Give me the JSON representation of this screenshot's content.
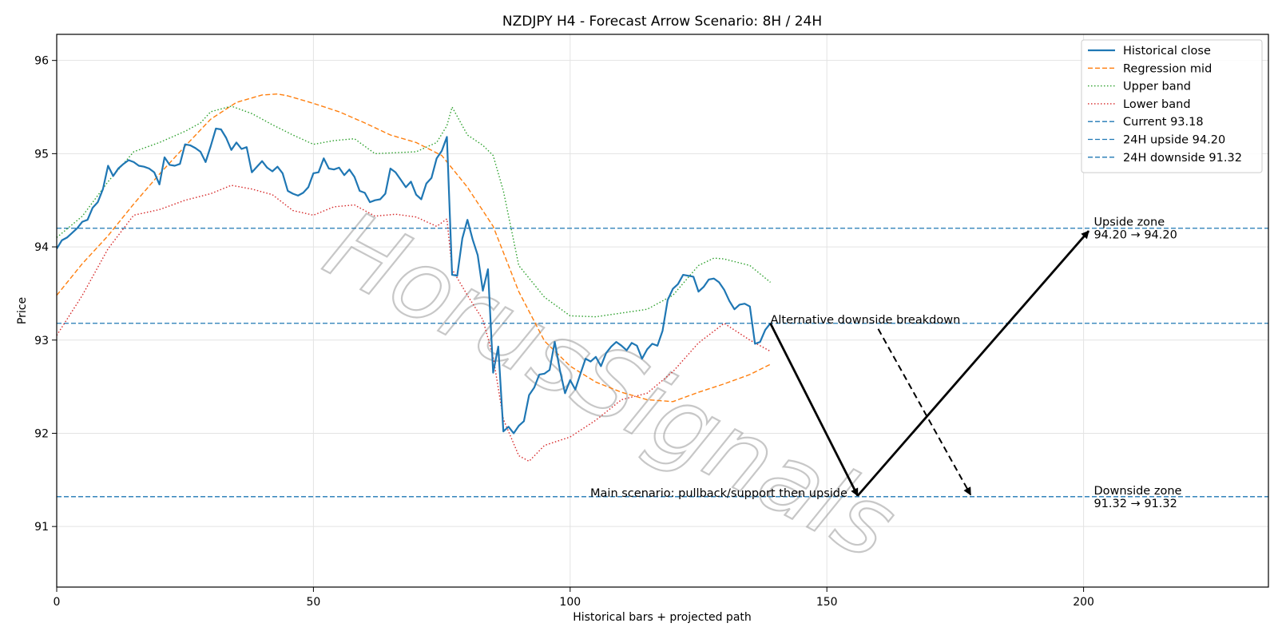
{
  "chart_data": {
    "type": "line",
    "title": "NZDJPY H4 - Forecast Arrow Scenario: 8H / 24H",
    "xlabel": "Historical bars + projected path",
    "ylabel": "Price",
    "xlim": [
      0,
      236
    ],
    "ylim": [
      90.35,
      96.28
    ],
    "xticks": [
      0,
      50,
      100,
      150,
      200
    ],
    "yticks": [
      91,
      92,
      93,
      94,
      95,
      96
    ],
    "grid": true,
    "legend_position": "top-right",
    "watermark": "HorusSignals",
    "colors": {
      "close": "#1f77b4",
      "mid": "#ff7f0e",
      "upper": "#2ca02c",
      "lower": "#d62728",
      "hline": "#1f77b4",
      "arrow": "#000000"
    },
    "series": [
      {
        "name": "Historical close",
        "style": "solid",
        "color": "#1f77b4",
        "x": [
          0,
          1,
          2,
          3,
          4,
          5,
          6,
          7,
          8,
          9,
          10,
          11,
          12,
          13,
          14,
          15,
          16,
          17,
          18,
          19,
          20,
          21,
          22,
          23,
          24,
          25,
          26,
          27,
          28,
          29,
          30,
          31,
          32,
          33,
          34,
          35,
          36,
          37,
          38,
          39,
          40,
          41,
          42,
          43,
          44,
          45,
          46,
          47,
          48,
          49,
          50,
          51,
          52,
          53,
          54,
          55,
          56,
          57,
          58,
          59,
          60,
          61,
          62,
          63,
          64,
          65,
          66,
          67,
          68,
          69,
          70,
          71,
          72,
          73,
          74,
          75,
          76,
          77,
          78,
          79,
          80,
          81,
          82,
          83,
          84,
          85,
          86,
          87,
          88,
          89,
          90,
          91,
          92,
          93,
          94,
          95,
          96,
          97,
          98,
          99,
          100,
          101,
          102,
          103,
          104,
          105,
          106,
          107,
          108,
          109,
          110,
          111,
          112,
          113,
          114,
          115,
          116,
          117,
          118,
          119,
          120,
          121,
          122,
          123,
          124,
          125,
          126,
          127,
          128,
          129,
          130,
          131,
          132,
          133,
          134,
          135,
          136,
          137,
          138,
          139
        ],
        "values": [
          93.98,
          94.07,
          94.1,
          94.15,
          94.2,
          94.27,
          94.29,
          94.42,
          94.48,
          94.62,
          94.87,
          94.76,
          94.84,
          94.89,
          94.93,
          94.91,
          94.87,
          94.86,
          94.84,
          94.8,
          94.67,
          94.96,
          94.88,
          94.87,
          94.89,
          95.1,
          95.09,
          95.06,
          95.02,
          94.91,
          95.08,
          95.27,
          95.26,
          95.17,
          95.04,
          95.12,
          95.05,
          95.07,
          94.8,
          94.86,
          94.92,
          94.85,
          94.81,
          94.86,
          94.79,
          94.6,
          94.57,
          94.55,
          94.58,
          94.64,
          94.79,
          94.8,
          94.95,
          94.84,
          94.83,
          94.85,
          94.77,
          94.83,
          94.75,
          94.6,
          94.58,
          94.48,
          94.5,
          94.51,
          94.57,
          94.84,
          94.8,
          94.72,
          94.64,
          94.7,
          94.56,
          94.51,
          94.68,
          94.74,
          94.95,
          95.03,
          95.18,
          93.7,
          93.69,
          94.09,
          94.29,
          94.08,
          93.91,
          93.53,
          93.76,
          92.65,
          92.93,
          92.02,
          92.07,
          92.0,
          92.08,
          92.13,
          92.41,
          92.49,
          92.63,
          92.64,
          92.68,
          92.98,
          92.68,
          92.43,
          92.57,
          92.47,
          92.64,
          92.8,
          92.77,
          92.82,
          92.72,
          92.86,
          92.93,
          92.98,
          92.94,
          92.89,
          92.97,
          92.94,
          92.8,
          92.9,
          92.96,
          92.94,
          93.1,
          93.43,
          93.55,
          93.6,
          93.7,
          93.69,
          93.68,
          93.52,
          93.57,
          93.65,
          93.66,
          93.62,
          93.54,
          93.42,
          93.33,
          93.38,
          93.39,
          93.36,
          92.96,
          92.98,
          93.11,
          93.18
        ]
      },
      {
        "name": "Regression mid",
        "style": "dashed",
        "color": "#ff7f0e",
        "x": [
          0,
          5,
          10,
          15,
          20,
          25,
          30,
          35,
          40,
          43,
          45,
          50,
          55,
          60,
          65,
          70,
          75,
          80,
          85,
          90,
          95,
          100,
          105,
          110,
          115,
          120,
          125,
          130,
          135,
          139
        ],
        "values": [
          93.48,
          93.82,
          94.12,
          94.46,
          94.78,
          95.08,
          95.37,
          95.55,
          95.63,
          95.64,
          95.62,
          95.54,
          95.45,
          95.33,
          95.2,
          95.12,
          94.98,
          94.64,
          94.22,
          93.52,
          92.99,
          92.72,
          92.55,
          92.44,
          92.36,
          92.34,
          92.44,
          92.53,
          92.63,
          92.74
        ]
      },
      {
        "name": "Upper band",
        "style": "dotted",
        "color": "#2ca02c",
        "x": [
          0,
          5,
          10,
          15,
          20,
          25,
          28,
          30,
          34,
          38,
          42,
          46,
          50,
          54,
          58,
          62,
          66,
          70,
          74,
          76,
          77,
          80,
          83,
          85,
          87,
          90,
          95,
          100,
          105,
          110,
          115,
          120,
          125,
          128,
          130,
          135,
          139
        ],
        "values": [
          94.1,
          94.33,
          94.7,
          95.02,
          95.12,
          95.24,
          95.33,
          95.45,
          95.51,
          95.43,
          95.31,
          95.2,
          95.1,
          95.14,
          95.16,
          95.0,
          95.01,
          95.02,
          95.12,
          95.3,
          95.5,
          95.2,
          95.09,
          94.98,
          94.6,
          93.8,
          93.46,
          93.26,
          93.25,
          93.29,
          93.33,
          93.48,
          93.8,
          93.88,
          93.87,
          93.8,
          93.62
        ]
      },
      {
        "name": "Lower band",
        "style": "dotted",
        "color": "#d62728",
        "x": [
          0,
          5,
          10,
          15,
          20,
          25,
          30,
          34,
          38,
          42,
          46,
          50,
          54,
          58,
          62,
          66,
          70,
          74,
          76,
          77,
          80,
          83,
          85,
          87,
          90,
          92,
          95,
          100,
          105,
          110,
          115,
          120,
          125,
          130,
          135,
          139
        ],
        "values": [
          93.05,
          93.48,
          93.98,
          94.34,
          94.4,
          94.5,
          94.57,
          94.66,
          94.62,
          94.56,
          94.39,
          94.34,
          94.43,
          94.45,
          94.33,
          94.35,
          94.32,
          94.22,
          94.3,
          93.76,
          93.48,
          93.22,
          92.82,
          92.15,
          91.76,
          91.7,
          91.87,
          91.96,
          92.14,
          92.36,
          92.43,
          92.66,
          92.97,
          93.18,
          93.0,
          92.88
        ]
      }
    ],
    "hlines": [
      {
        "name": "Current 93.18",
        "value": 93.18
      },
      {
        "name": "24H upside 94.20",
        "value": 94.2
      },
      {
        "name": "24H downside 91.32",
        "value": 91.32
      }
    ],
    "arrows": [
      {
        "from": [
          139,
          93.18
        ],
        "to": [
          156,
          91.33
        ],
        "style": "solid"
      },
      {
        "from": [
          156,
          91.33
        ],
        "to": [
          201,
          94.17
        ],
        "style": "solid"
      },
      {
        "from": [
          160,
          93.12
        ],
        "to": [
          178,
          91.34
        ],
        "style": "dashed"
      }
    ],
    "annotations": [
      {
        "text": "Alternative downside breakdown",
        "x": 139,
        "y": 93.18,
        "anchor": "start"
      },
      {
        "text": "Main scenario: pullback/support then upside",
        "x": 154,
        "y": 91.32,
        "anchor": "end"
      },
      {
        "text": "Upside zone",
        "x": 202,
        "y": 94.2,
        "anchor": "start",
        "line": 1
      },
      {
        "text": "94.20 → 94.20",
        "x": 202,
        "y": 94.2,
        "anchor": "start",
        "line": 2
      },
      {
        "text": "Downside zone",
        "x": 202,
        "y": 91.32,
        "anchor": "start",
        "line": 1
      },
      {
        "text": "91.32 → 91.32",
        "x": 202,
        "y": 91.32,
        "anchor": "start",
        "line": 2
      }
    ]
  }
}
